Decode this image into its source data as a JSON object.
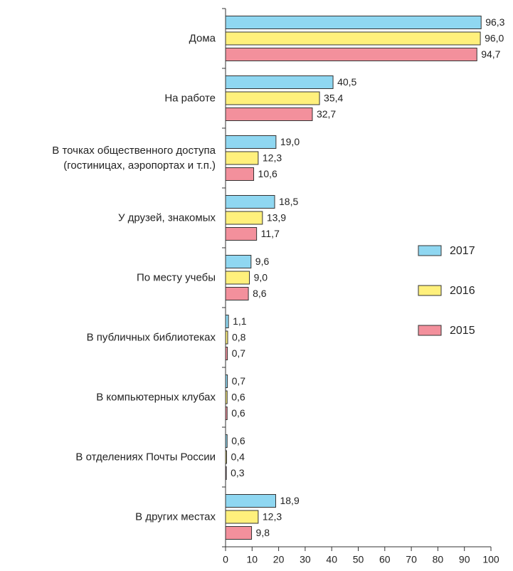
{
  "chart_data": {
    "type": "bar",
    "orientation": "horizontal",
    "categories": [
      "Дома",
      "На работе",
      "В точках общественного доступа\n(гостиницах, аэропортах и т.п.)",
      "У друзей, знакомых",
      "По месту учебы",
      "В публичных библиотеках",
      "В компьютерных клубах",
      "В отделениях Почты России",
      "В других местах"
    ],
    "series": [
      {
        "name": "2017",
        "color": "#8fd7f1",
        "values": [
          96.3,
          40.5,
          19.0,
          18.5,
          9.6,
          1.1,
          0.7,
          0.6,
          18.9
        ],
        "value_labels": [
          "96,3",
          "40,5",
          "19,0",
          "18,5",
          "9,6",
          "1,1",
          "0,7",
          "0,6",
          "18,9"
        ]
      },
      {
        "name": "2016",
        "color": "#fff07c",
        "values": [
          96.0,
          35.4,
          12.3,
          13.9,
          9.0,
          0.8,
          0.6,
          0.4,
          12.3
        ],
        "value_labels": [
          "96,0",
          "35,4",
          "12,3",
          "13,9",
          "9,0",
          "0,8",
          "0,6",
          "0,4",
          "12,3"
        ]
      },
      {
        "name": "2015",
        "color": "#f3909c",
        "values": [
          94.7,
          32.7,
          10.6,
          11.7,
          8.6,
          0.7,
          0.6,
          0.3,
          9.8
        ],
        "value_labels": [
          "94,7",
          "32,7",
          "10,6",
          "11,7",
          "8,6",
          "0,7",
          "0,6",
          "0,3",
          "9,8"
        ]
      }
    ],
    "xlim": [
      0,
      100
    ],
    "xticks": [
      0,
      10,
      20,
      30,
      40,
      50,
      60,
      70,
      80,
      90,
      100
    ],
    "legend": "right"
  }
}
